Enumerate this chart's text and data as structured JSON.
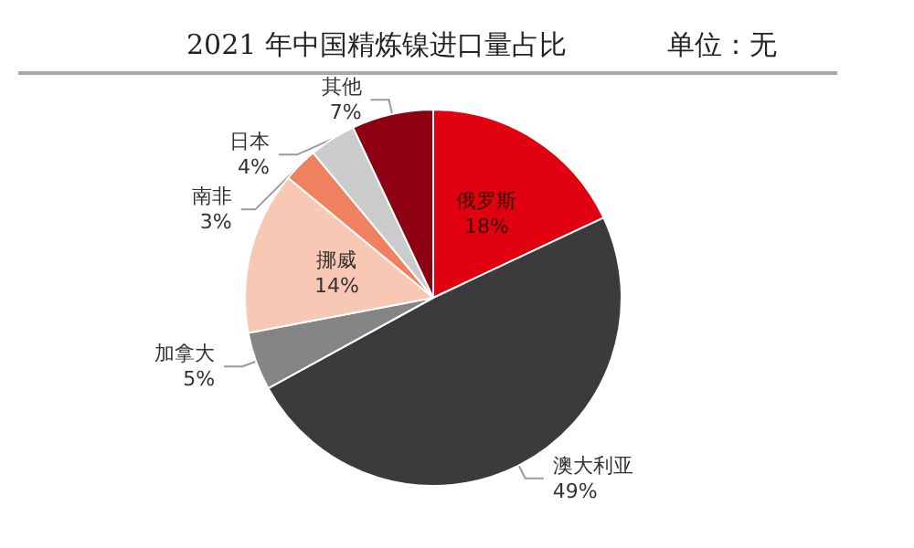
{
  "chart_data": {
    "type": "pie",
    "title": "2021 年中国精炼镍进口量占比",
    "subtitle": "单位：无",
    "categories": [
      "俄罗斯",
      "澳大利亚",
      "加拿大",
      "挪威",
      "南非",
      "日本",
      "其他"
    ],
    "values": [
      18,
      49,
      5,
      14,
      3,
      4,
      7
    ],
    "value_labels": [
      "18%",
      "49%",
      "5%",
      "14%",
      "3%",
      "4%",
      "7%"
    ],
    "colors": [
      "#e0000f",
      "#3b3b3b",
      "#858585",
      "#f9c8b4",
      "#ef8060",
      "#cbcbcb",
      "#8c0012"
    ],
    "legend": false
  }
}
